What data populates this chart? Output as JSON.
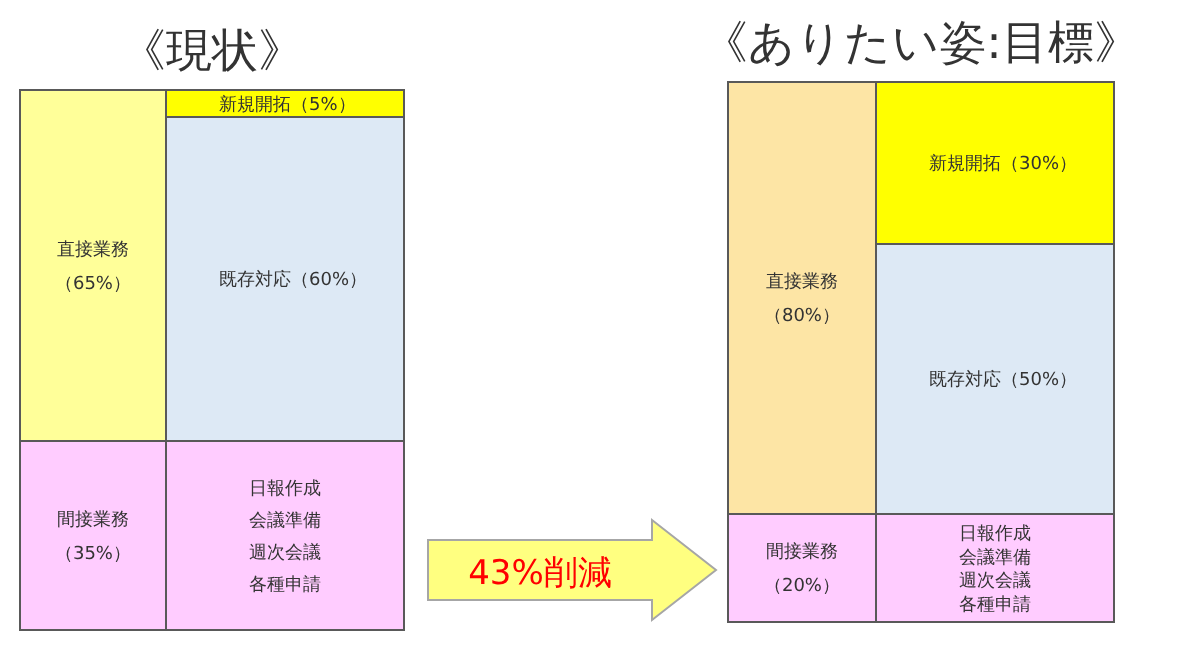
{
  "chart_data": [
    {
      "type": "other",
      "title": "《現状》",
      "categories": [
        "直接業務",
        "間接業務",
        "新規開拓",
        "既存対応"
      ],
      "values": [
        65,
        35,
        5,
        60
      ],
      "value_labels": [
        "（65%）",
        "（35%）",
        "（5%）",
        "（60%）"
      ],
      "colors": [
        "#ffff99",
        "#ffccff",
        "#ffff00",
        "#dde9f5"
      ],
      "annotations": [
        "日報作成",
        "会議準備",
        "週次会議",
        "各種申請"
      ]
    },
    {
      "type": "other",
      "title": "《ありたい姿:目標》",
      "categories": [
        "直接業務",
        "間接業務",
        "新規開拓",
        "既存対応"
      ],
      "values": [
        80,
        20,
        30,
        50
      ],
      "value_labels": [
        "（80%）",
        "（20%）",
        "（30%）",
        "（50%）"
      ],
      "colors": [
        "#fde5a5",
        "#ffccff",
        "#ffff00",
        "#dde9f5"
      ],
      "annotations": [
        "43%削減",
        "日報作成",
        "会議準備",
        "週次会議",
        "各種申請"
      ]
    }
  ]
}
